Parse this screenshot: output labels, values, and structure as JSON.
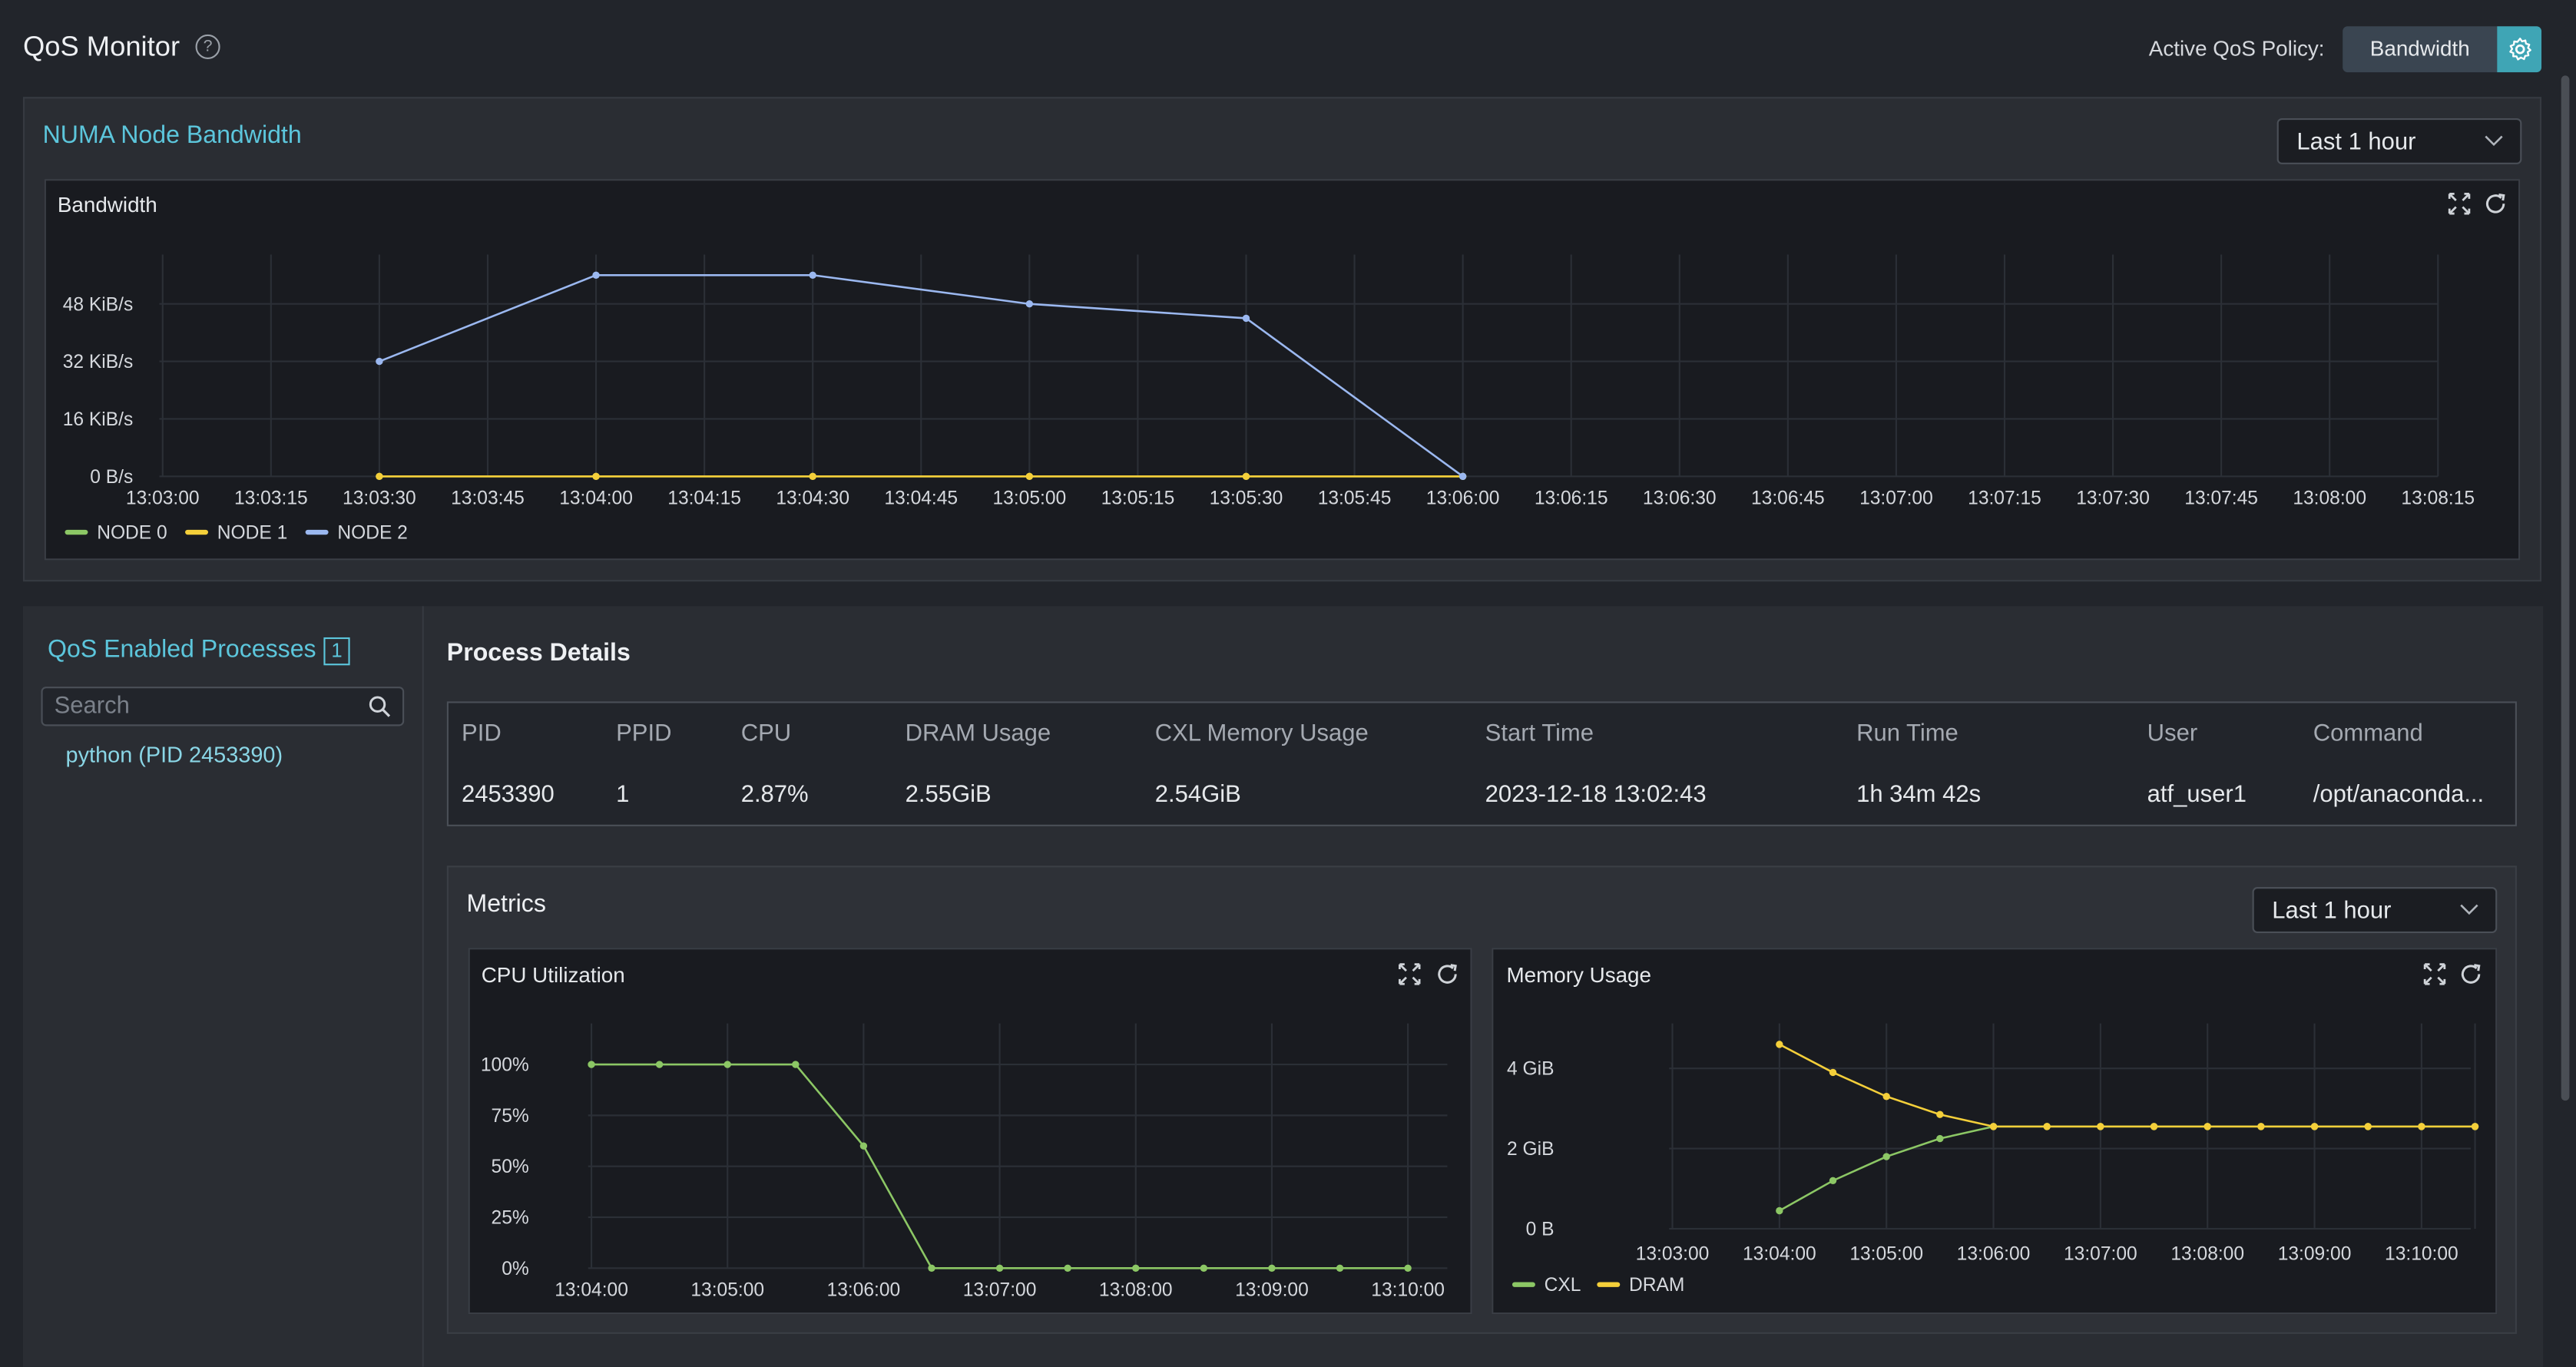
{
  "header": {
    "title": "QoS Monitor",
    "help_icon": "?",
    "policy_label": "Active QoS Policy:",
    "policy_value": "Bandwidth"
  },
  "bandwidth_section": {
    "title": "NUMA Node Bandwidth",
    "range": "Last 1 hour"
  },
  "sidebar": {
    "title": "QoS Enabled Processes",
    "count": "1",
    "search_placeholder": "Search",
    "processes": [
      "python (PID 2453390)"
    ]
  },
  "details": {
    "title": "Process Details",
    "columns": [
      "PID",
      "PPID",
      "CPU",
      "DRAM Usage",
      "CXL Memory Usage",
      "Start Time",
      "Run Time",
      "User",
      "Command"
    ],
    "row": [
      "2453390",
      "1",
      "2.87%",
      "2.55GiB",
      "2.54GiB",
      "2023-12-18 13:02:43",
      "1h 34m 42s",
      "atf_user1",
      "/opt/anaconda..."
    ]
  },
  "metrics": {
    "title": "Metrics",
    "range": "Last 1 hour"
  },
  "colors": {
    "accent": "#5cc6dc",
    "node0": "#8cc765",
    "node1": "#f4cf3a",
    "node2": "#9bb8f0"
  },
  "chart_data": [
    {
      "type": "line",
      "title": "Bandwidth",
      "x": [
        "13:03:30",
        "13:04:00",
        "13:04:30",
        "13:05:00",
        "13:05:30",
        "13:06:00"
      ],
      "x_ticks": [
        "13:03:00",
        "13:03:15",
        "13:03:30",
        "13:03:45",
        "13:04:00",
        "13:04:15",
        "13:04:30",
        "13:04:45",
        "13:05:00",
        "13:05:15",
        "13:05:30",
        "13:05:45",
        "13:06:00",
        "13:06:15",
        "13:06:30",
        "13:06:45",
        "13:07:00",
        "13:07:15",
        "13:07:30",
        "13:07:45",
        "13:08:00",
        "13:08:15"
      ],
      "y_ticks": [
        "0 B/s",
        "16 KiB/s",
        "32 KiB/s",
        "48 KiB/s"
      ],
      "ylim": [
        0,
        64
      ],
      "yunit": "KiB/s",
      "series": [
        {
          "name": "NODE 0",
          "values": [
            0,
            0,
            0,
            0,
            0,
            0
          ]
        },
        {
          "name": "NODE 1",
          "values": [
            0,
            0,
            0,
            0,
            0,
            0
          ]
        },
        {
          "name": "NODE 2",
          "values": [
            32,
            56,
            56,
            48,
            44,
            0
          ]
        }
      ],
      "legend": "bottom-left",
      "grid": true
    },
    {
      "type": "line",
      "title": "CPU Utilization",
      "x": [
        "13:04:00",
        "13:04:30",
        "13:05:00",
        "13:05:30",
        "13:06:00",
        "13:06:30",
        "13:07:00",
        "13:07:30",
        "13:08:00",
        "13:08:30",
        "13:09:00",
        "13:09:30",
        "13:10:00"
      ],
      "x_ticks": [
        "13:04:00",
        "13:05:00",
        "13:06:00",
        "13:07:00",
        "13:08:00",
        "13:09:00",
        "13:10:00"
      ],
      "y_ticks": [
        "0%",
        "25%",
        "50%",
        "75%",
        "100%"
      ],
      "ylim": [
        0,
        100
      ],
      "series": [
        {
          "values": [
            100,
            100,
            100,
            100,
            60,
            0,
            0,
            0,
            0,
            0,
            0,
            0,
            0
          ]
        }
      ],
      "grid": true
    },
    {
      "type": "line",
      "title": "Memory Usage",
      "x": [
        "13:04:00",
        "13:04:30",
        "13:05:00",
        "13:05:30",
        "13:06:00",
        "13:06:30",
        "13:07:00",
        "13:07:30",
        "13:08:00",
        "13:08:30",
        "13:09:00",
        "13:09:30",
        "13:10:00",
        "13:10:30"
      ],
      "x_ticks": [
        "13:03:00",
        "13:04:00",
        "13:05:00",
        "13:06:00",
        "13:07:00",
        "13:08:00",
        "13:09:00",
        "13:10:00"
      ],
      "y_ticks": [
        "0 B",
        "2 GiB",
        "4 GiB"
      ],
      "ylim": [
        0,
        5
      ],
      "series": [
        {
          "name": "CXL",
          "values": [
            0.45,
            1.2,
            1.8,
            2.25,
            2.55,
            2.55,
            2.55,
            2.55,
            2.55,
            2.55,
            2.55,
            2.55,
            2.55,
            2.55
          ]
        },
        {
          "name": "DRAM",
          "values": [
            4.6,
            3.9,
            3.3,
            2.85,
            2.55,
            2.55,
            2.55,
            2.55,
            2.55,
            2.55,
            2.55,
            2.55,
            2.55,
            2.55
          ]
        }
      ],
      "legend": "bottom-left",
      "grid": true
    }
  ]
}
